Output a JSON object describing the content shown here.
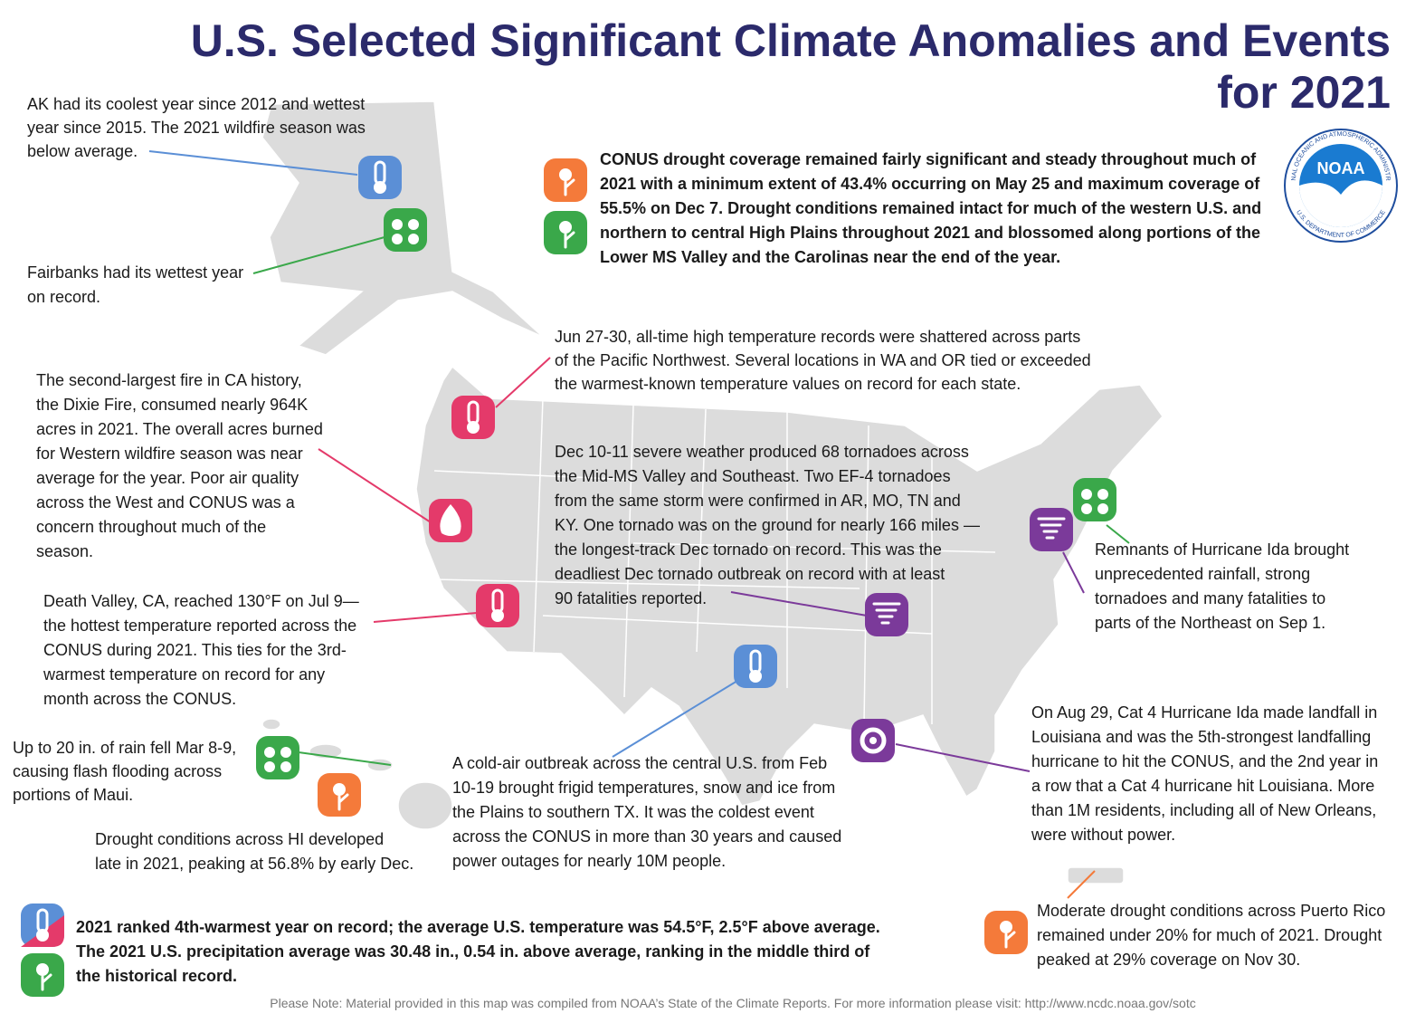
{
  "title": [
    "U.S. Selected Significant Climate Anomalies and Events",
    "for 2021"
  ],
  "logo": {
    "name": "NOAA",
    "top_arc": "NATIONAL OCEANIC AND ATMOSPHERIC ADMINISTRATION",
    "bottom_arc": "U.S. DEPARTMENT OF COMMERCE"
  },
  "annotations": [
    {
      "lines": [
        "AK had its coolest year since 2012 and wettest",
        "year since 2015. The 2021 wildfire season was",
        "below average."
      ]
    },
    {
      "lines": [
        "Fairbanks had its wettest year",
        "on record."
      ]
    },
    {
      "lines": [
        "CONUS drought coverage remained fairly significant and steady throughout much of",
        "2021 with a minimum extent of 43.4% occurring on May 25 and maximum coverage of",
        "55.5% on Dec 7. Drought conditions remained intact for much of the western U.S. and",
        "northern to central High Plains throughout 2021 and blossomed along portions of the",
        "Lower MS Valley and the Carolinas near the end of the year."
      ]
    },
    {
      "lines": [
        "Jun 27-30, all-time high temperature records were shattered across parts",
        "of the Pacific Northwest. Several locations in WA and OR tied or exceeded",
        "the warmest-known temperature values on record for each state."
      ]
    },
    {
      "lines": [
        "The second-largest fire in CA history,",
        "the Dixie Fire, consumed nearly 964K",
        "acres in 2021. The overall acres burned",
        "for Western wildfire season was near",
        "average for the year. Poor air quality",
        "across the West and CONUS was a",
        "concern throughout much of the",
        "season."
      ]
    },
    {
      "lines": [
        "Dec 10-11 severe weather produced 68 tornadoes across",
        "the Mid-MS Valley and Southeast. Two EF-4 tornadoes",
        "from the same storm were confirmed in AR, MO, TN and",
        "KY. One tornado was on the ground for nearly 166 miles —",
        "the longest-track Dec tornado on record. This was the",
        "deadliest Dec tornado outbreak on record with at least",
        "90 fatalities reported."
      ]
    },
    {
      "lines": [
        "Remnants of Hurricane Ida brought",
        "unprecedented rainfall, strong",
        "tornadoes and many fatalities to",
        "parts of the Northeast on Sep 1."
      ]
    },
    {
      "lines": [
        "Death Valley, CA, reached 130°F on Jul 9—",
        "the hottest temperature reported across the",
        "CONUS during 2021. This ties for the 3rd-",
        "warmest temperature on record for any",
        "month across the CONUS."
      ]
    },
    {
      "lines": [
        "On Aug 29, Cat 4 Hurricane Ida made landfall in",
        "Louisiana and was the 5th-strongest landfalling",
        "hurricane to hit the CONUS, and the 2nd year in",
        "a row that a Cat 4 hurricane hit Louisiana. More",
        "than 1M residents, including all of New Orleans,",
        "were without power."
      ]
    },
    {
      "lines": [
        "Up to 20 in. of rain fell Mar 8-9,",
        "causing flash flooding across",
        "portions of Maui."
      ]
    },
    {
      "lines": [
        "Drought conditions across HI developed",
        "late in 2021, peaking at 56.8% by early Dec."
      ]
    },
    {
      "lines": [
        "A cold-air outbreak across the central U.S. from Feb",
        "10-19 brought frigid temperatures, snow and ice from",
        "the Plains to southern TX. It was the coldest event",
        "across the CONUS in more than 30 years and caused",
        "power outages for nearly 10M people."
      ]
    },
    {
      "lines": [
        "Moderate drought conditions across Puerto Rico",
        "remained under 20% for much of 2021. Drought",
        "peaked at 29% coverage on Nov 30."
      ]
    },
    {
      "lines": [
        "2021 ranked 4th-warmest year on record; the average U.S. temperature was 54.5°F, 2.5°F above average.",
        "The 2021 U.S. precipitation average was 30.48 in., 0.54 in. above average, ranking in the middle third of",
        "the historical record."
      ]
    }
  ],
  "note": "Please Note: Material provided in this map was compiled from NOAA’s State of the Climate Reports. For more information please visit: http://www.ncdc.noaa.gov/sotc"
}
